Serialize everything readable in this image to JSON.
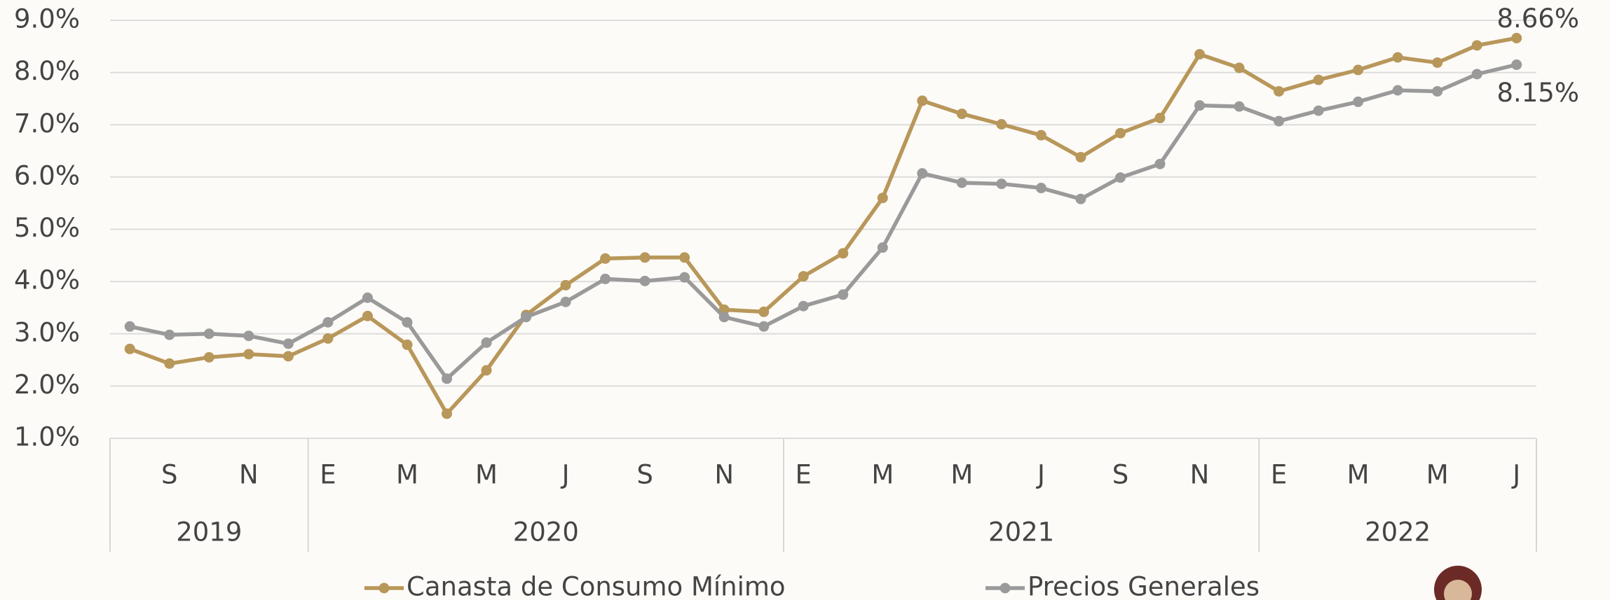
{
  "chart_data": {
    "type": "line",
    "categories": [
      null,
      "S",
      null,
      "N",
      null,
      "E",
      null,
      "M",
      null,
      "M",
      null,
      "J",
      null,
      "S",
      null,
      "N",
      null,
      "E",
      null,
      "M",
      null,
      "M",
      null,
      "J",
      null,
      "S",
      null,
      "N",
      null,
      "E",
      null,
      "M",
      null,
      "M",
      null,
      "J"
    ],
    "years": [
      "2019",
      "2020",
      "2021",
      "2022"
    ],
    "series": [
      {
        "name": "Canasta de Consumo Mínimo",
        "color": "#b8975a",
        "values": [
          2.71,
          2.43,
          2.55,
          2.61,
          2.57,
          2.91,
          3.34,
          2.79,
          1.47,
          2.3,
          3.36,
          3.93,
          4.44,
          4.46,
          4.46,
          3.46,
          3.42,
          4.1,
          4.54,
          5.6,
          7.46,
          7.21,
          7.01,
          6.8,
          6.38,
          6.84,
          7.13,
          8.35,
          8.09,
          7.64,
          7.86,
          8.05,
          8.29,
          8.19,
          8.52,
          8.66
        ],
        "value_labels": [
          null,
          null,
          null,
          null,
          null,
          null,
          null,
          null,
          null,
          null,
          null,
          null,
          null,
          null,
          null,
          null,
          null,
          null,
          null,
          null,
          null,
          null,
          null,
          null,
          null,
          null,
          null,
          null,
          null,
          null,
          null,
          null,
          null,
          null,
          null,
          "8.66%"
        ]
      },
      {
        "name": "Precios Generales",
        "color": "#9a9a9a",
        "values": [
          3.14,
          2.98,
          3.0,
          2.96,
          2.81,
          3.22,
          3.69,
          3.22,
          2.14,
          2.83,
          3.32,
          3.61,
          4.05,
          4.01,
          4.08,
          3.32,
          3.14,
          3.53,
          3.75,
          4.65,
          6.07,
          5.89,
          5.87,
          5.79,
          5.58,
          5.99,
          6.25,
          7.37,
          7.35,
          7.07,
          7.27,
          7.44,
          7.66,
          7.64,
          7.97,
          8.15
        ],
        "value_labels": [
          null,
          null,
          null,
          null,
          null,
          null,
          null,
          null,
          null,
          null,
          null,
          null,
          null,
          null,
          null,
          null,
          null,
          null,
          null,
          null,
          null,
          null,
          null,
          null,
          null,
          null,
          null,
          null,
          null,
          null,
          null,
          null,
          null,
          null,
          null,
          "8.15%"
        ]
      }
    ],
    "ylim": [
      1,
      9
    ],
    "yticks": [
      {
        "value": 1,
        "label": "1.0%"
      },
      {
        "value": 2,
        "label": "2.0%"
      },
      {
        "value": 3,
        "label": "3.0%"
      },
      {
        "value": 4,
        "label": "4.0%"
      },
      {
        "value": 5,
        "label": "5.0%"
      },
      {
        "value": 6,
        "label": "6.0%"
      },
      {
        "value": 7,
        "label": "7.0%"
      },
      {
        "value": 8,
        "label": "8.0%"
      },
      {
        "value": 9,
        "label": "9.0%"
      }
    ],
    "grid": true
  }
}
